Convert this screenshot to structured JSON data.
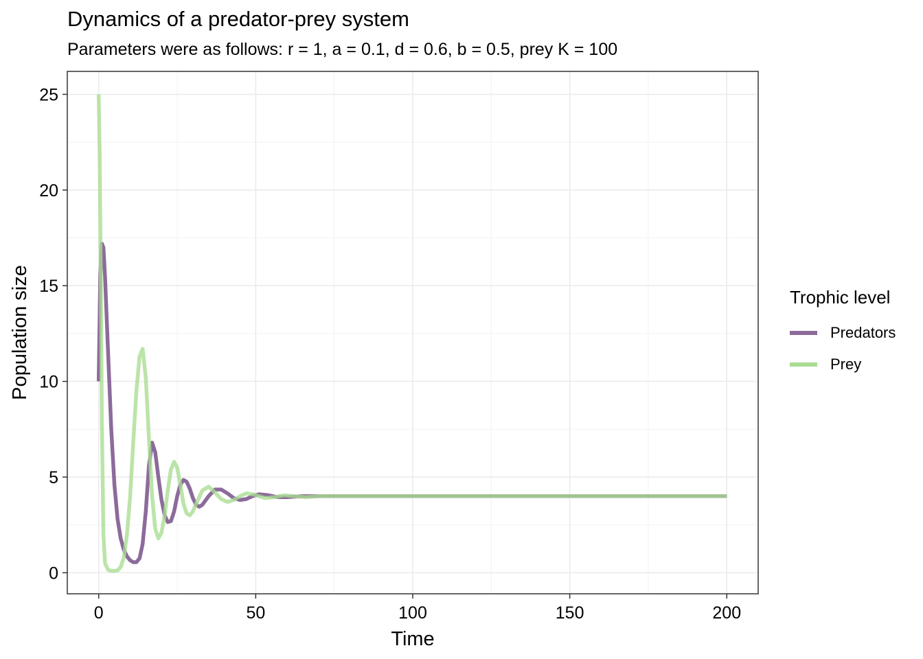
{
  "chart_data": {
    "type": "line",
    "title": "Dynamics of a predator-prey system",
    "subtitle": "Parameters were as follows: r = 1, a = 0.1, d = 0.6, b = 0.5, prey K = 100",
    "xlabel": "Time",
    "ylabel": "Population size",
    "xlim": [
      -10,
      210
    ],
    "ylim": [
      -1.1,
      26.2
    ],
    "xticks": [
      0,
      50,
      100,
      150,
      200
    ],
    "yticks": [
      0,
      5,
      10,
      15,
      20,
      25
    ],
    "xtick_labels": [
      "0",
      "50",
      "100",
      "150",
      "200"
    ],
    "ytick_labels": [
      "0",
      "5",
      "10",
      "15",
      "20",
      "25"
    ],
    "grid": true,
    "legend": {
      "title": "Trophic level",
      "placement": "right"
    },
    "series": [
      {
        "name": "Predators",
        "color": "#8C6B9B",
        "x": [
          0,
          0.5,
          1,
          1.5,
          2,
          3,
          4,
          5,
          6,
          7,
          8,
          9,
          10,
          11,
          12,
          13,
          14,
          15,
          16,
          17,
          18,
          19,
          20,
          21,
          22,
          23,
          24,
          25,
          26,
          27,
          28,
          29,
          30,
          31,
          32,
          33,
          35,
          37,
          39,
          41,
          43,
          45,
          47,
          49,
          51,
          54,
          57,
          60,
          65,
          70,
          80,
          100,
          150,
          200
        ],
        "y": [
          10,
          15.5,
          17.2,
          17.0,
          15.5,
          11.5,
          7.5,
          4.6,
          2.8,
          1.8,
          1.2,
          0.85,
          0.65,
          0.55,
          0.55,
          0.75,
          1.5,
          3.2,
          5.6,
          6.8,
          6.3,
          5.0,
          3.8,
          3.0,
          2.65,
          2.7,
          3.2,
          4.0,
          4.6,
          4.85,
          4.75,
          4.4,
          3.9,
          3.55,
          3.45,
          3.55,
          4.0,
          4.35,
          4.35,
          4.15,
          3.9,
          3.8,
          3.85,
          4.0,
          4.1,
          4.05,
          3.95,
          3.95,
          4.0,
          4.0,
          4.0,
          4.0,
          4.0,
          4.0
        ]
      },
      {
        "name": "Prey",
        "color": "#A8DC91",
        "x": [
          0,
          0.3,
          0.7,
          1,
          1.5,
          2,
          3,
          4,
          5,
          6,
          7,
          8,
          9,
          10,
          11,
          12,
          13,
          14,
          15,
          16,
          17,
          18,
          19,
          20,
          21,
          22,
          23,
          24,
          25,
          26,
          27,
          28,
          29,
          30,
          31,
          33,
          35,
          37,
          39,
          41,
          43,
          45,
          47,
          49,
          51,
          53,
          56,
          59,
          62,
          66,
          70,
          80,
          100,
          150,
          200
        ],
        "y": [
          25,
          22,
          15,
          8,
          2,
          0.5,
          0.15,
          0.1,
          0.1,
          0.12,
          0.3,
          0.8,
          2.0,
          4.0,
          6.8,
          9.5,
          11.3,
          11.7,
          10.2,
          7.0,
          4.0,
          2.3,
          1.8,
          2.1,
          3.0,
          4.3,
          5.4,
          5.8,
          5.5,
          4.6,
          3.6,
          3.1,
          3.0,
          3.2,
          3.6,
          4.3,
          4.5,
          4.2,
          3.85,
          3.7,
          3.8,
          4.0,
          4.15,
          4.1,
          4.0,
          3.9,
          3.95,
          4.05,
          4.0,
          3.95,
          4.0,
          4.0,
          4.0,
          4.0,
          4.0
        ]
      }
    ]
  }
}
